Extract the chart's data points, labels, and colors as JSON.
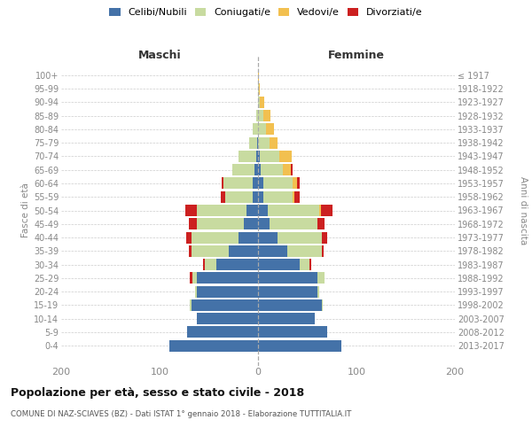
{
  "age_groups": [
    "0-4",
    "5-9",
    "10-14",
    "15-19",
    "20-24",
    "25-29",
    "30-34",
    "35-39",
    "40-44",
    "45-49",
    "50-54",
    "55-59",
    "60-64",
    "65-69",
    "70-74",
    "75-79",
    "80-84",
    "85-89",
    "90-94",
    "95-99",
    "100+"
  ],
  "birth_years": [
    "2013-2017",
    "2008-2012",
    "2003-2007",
    "1998-2002",
    "1993-1997",
    "1988-1992",
    "1983-1987",
    "1978-1982",
    "1973-1977",
    "1968-1972",
    "1963-1967",
    "1958-1962",
    "1953-1957",
    "1948-1952",
    "1943-1947",
    "1938-1942",
    "1933-1937",
    "1928-1932",
    "1923-1927",
    "1918-1922",
    "≤ 1917"
  ],
  "males": {
    "celibi": [
      90,
      72,
      62,
      68,
      62,
      62,
      42,
      30,
      20,
      14,
      12,
      5,
      5,
      4,
      2,
      1,
      0,
      0,
      0,
      0,
      0
    ],
    "coniugati": [
      0,
      0,
      0,
      1,
      2,
      5,
      12,
      38,
      48,
      48,
      50,
      28,
      30,
      22,
      18,
      8,
      5,
      2,
      0,
      0,
      0
    ],
    "vedovi": [
      0,
      0,
      0,
      0,
      0,
      0,
      0,
      0,
      0,
      0,
      0,
      0,
      0,
      0,
      0,
      0,
      0,
      0,
      0,
      0,
      0
    ],
    "divorziati": [
      0,
      0,
      0,
      0,
      0,
      2,
      2,
      2,
      5,
      8,
      12,
      5,
      2,
      0,
      0,
      0,
      0,
      0,
      0,
      0,
      0
    ]
  },
  "females": {
    "nubili": [
      85,
      70,
      58,
      65,
      60,
      60,
      42,
      30,
      20,
      12,
      10,
      5,
      5,
      3,
      2,
      0,
      0,
      0,
      0,
      0,
      0
    ],
    "coniugate": [
      0,
      0,
      0,
      1,
      2,
      8,
      10,
      35,
      45,
      48,
      52,
      30,
      30,
      22,
      20,
      12,
      8,
      5,
      2,
      1,
      0
    ],
    "vedove": [
      0,
      0,
      0,
      0,
      0,
      0,
      0,
      0,
      0,
      0,
      2,
      2,
      5,
      8,
      12,
      8,
      8,
      8,
      4,
      1,
      1
    ],
    "divorziate": [
      0,
      0,
      0,
      0,
      0,
      0,
      2,
      2,
      5,
      8,
      12,
      5,
      2,
      2,
      0,
      0,
      0,
      0,
      0,
      0,
      0
    ]
  },
  "colors": {
    "celibi": "#4472a8",
    "coniugati": "#c8dba0",
    "vedovi": "#f2c050",
    "divorziati": "#cc2020"
  },
  "xlim": [
    -200,
    200
  ],
  "xticks": [
    -200,
    -100,
    0,
    100,
    200
  ],
  "xlabel_left": "Maschi",
  "xlabel_right": "Femmine",
  "ylabel_left": "Fasce di età",
  "ylabel_right": "Anni di nascita",
  "title": "Popolazione per età, sesso e stato civile - 2018",
  "subtitle": "COMUNE DI NAZ-SCIAVES (BZ) - Dati ISTAT 1° gennaio 2018 - Elaborazione TUTTITALIA.IT",
  "legend_labels": [
    "Celibi/Nubili",
    "Coniugati/e",
    "Vedovi/e",
    "Divorziati/e"
  ],
  "bar_height": 0.85,
  "bg_color": "#ffffff",
  "grid_color": "#cccccc",
  "tick_color": "#888888",
  "header_color": "#333333",
  "title_color": "#111111",
  "subtitle_color": "#555555"
}
